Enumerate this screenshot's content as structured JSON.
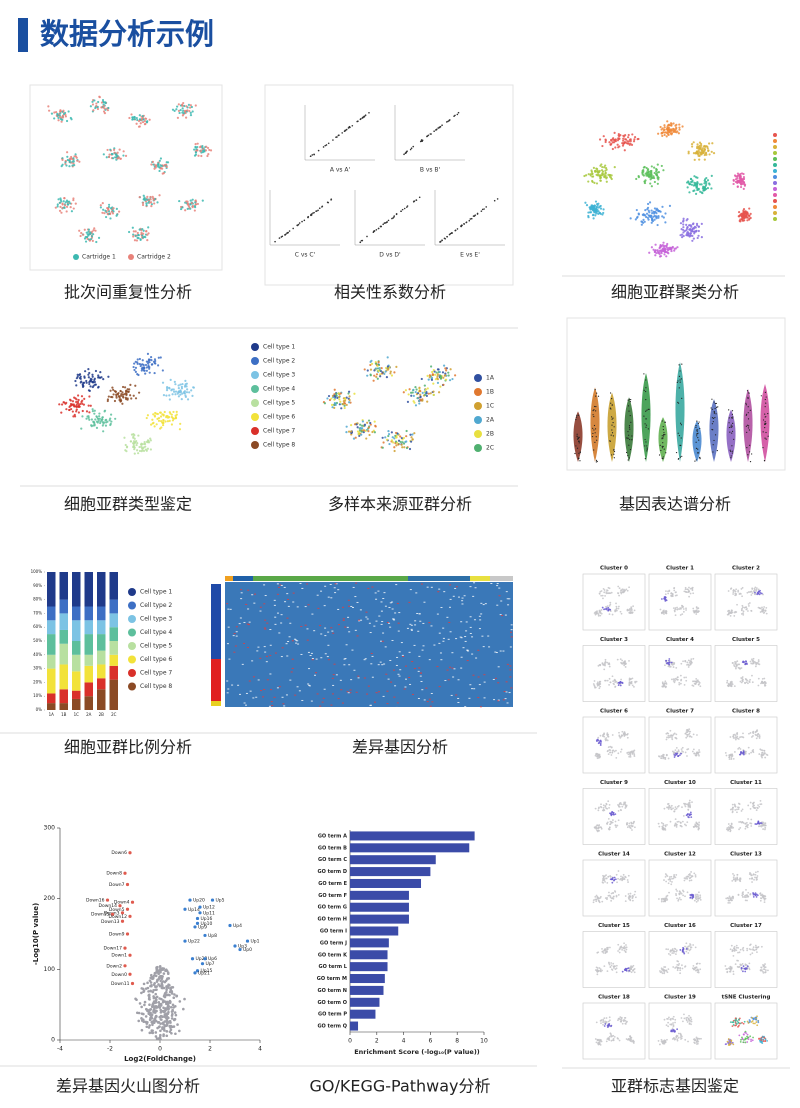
{
  "header": {
    "title": "数据分析示例"
  },
  "panels": [
    {
      "caption": "批次间重复性分析",
      "legend": [
        "Cartridge 1",
        "Cartridge 2"
      ]
    },
    {
      "caption": "相关性系数分析",
      "labels": [
        "A vs A'",
        "B vs B'",
        "C vs C'",
        "D vs D'",
        "E vs E'"
      ]
    },
    {
      "caption": "细胞亚群聚类分析"
    },
    {
      "caption": "细胞亚群类型鉴定",
      "legend": [
        "Cell type 1",
        "Cell type 2",
        "Cell type 3",
        "Cell type 4",
        "Cell type 5",
        "Cell type 6",
        "Cell type 7",
        "Cell type 8"
      ]
    },
    {
      "caption": "多样本来源亚群分析",
      "legend": [
        "1A",
        "1B",
        "1C",
        "2A",
        "2B",
        "2C"
      ]
    },
    {
      "caption": "基因表达谱分析"
    },
    {
      "caption": "细胞亚群比例分析",
      "chart": {
        "type": "stacked-bar",
        "categories": [
          "1A",
          "1B",
          "1C",
          "2A",
          "2B",
          "2C"
        ],
        "ylim": [
          0,
          100
        ],
        "yticks": [
          {
            "value": 0,
            "label": "0%"
          },
          {
            "value": 10,
            "label": "10%"
          },
          {
            "value": 20,
            "label": "20%"
          },
          {
            "value": 30,
            "label": "30%"
          },
          {
            "value": 40,
            "label": "40%"
          },
          {
            "value": 50,
            "label": "50%"
          },
          {
            "value": 60,
            "label": "60%"
          },
          {
            "value": 70,
            "label": "70%"
          },
          {
            "value": 80,
            "label": "80%"
          },
          {
            "value": 90,
            "label": "90%"
          },
          {
            "value": 100,
            "label": "100%"
          }
        ],
        "series": [
          {
            "name": "Cell type 1",
            "color": "#1f3a8a",
            "values": [
              25,
              20,
              25,
              25,
              25,
              20
            ]
          },
          {
            "name": "Cell type 2",
            "color": "#3d6fc4",
            "values": [
              10,
              10,
              10,
              10,
              10,
              10
            ]
          },
          {
            "name": "Cell type 3",
            "color": "#7cc3e4",
            "values": [
              10,
              12,
              15,
              10,
              10,
              10
            ]
          },
          {
            "name": "Cell type 4",
            "color": "#5dbf9c",
            "values": [
              15,
              10,
              10,
              15,
              12,
              10
            ]
          },
          {
            "name": "Cell type 5",
            "color": "#b8e0a0",
            "values": [
              10,
              15,
              12,
              8,
              10,
              10
            ]
          },
          {
            "name": "Cell type 6",
            "color": "#f2e23a",
            "values": [
              18,
              18,
              14,
              12,
              10,
              8
            ]
          },
          {
            "name": "Cell type 7",
            "color": "#d9302a",
            "values": [
              7,
              10,
              6,
              10,
              8,
              10
            ]
          },
          {
            "name": "Cell type 8",
            "color": "#8b4a25",
            "values": [
              5,
              5,
              8,
              10,
              15,
              22
            ]
          }
        ]
      }
    },
    {
      "caption": "差异基因分析"
    },
    {
      "caption": "差异基因火山图分析",
      "chart": {
        "type": "scatter",
        "xlabel": "Log2(FoldChange)",
        "ylabel": "-Log10(P value)",
        "xlim": [
          -4,
          4
        ],
        "xticks": [
          -4,
          -2,
          0,
          2,
          4
        ],
        "ylim": [
          0,
          300
        ],
        "yticks": [
          0,
          100,
          200,
          300
        ],
        "down_color": "#e05a4e",
        "up_color": "#3a7fd0",
        "points": [
          {
            "label": "Down6",
            "x": -1.2,
            "y": 265
          },
          {
            "label": "Down8",
            "x": -1.4,
            "y": 236
          },
          {
            "label": "Down7",
            "x": -1.3,
            "y": 220
          },
          {
            "label": "Down16",
            "x": -2.1,
            "y": 198
          },
          {
            "label": "Down4",
            "x": -1.1,
            "y": 195
          },
          {
            "label": "Down14",
            "x": -1.6,
            "y": 190
          },
          {
            "label": "Down5",
            "x": -1.3,
            "y": 185
          },
          {
            "label": "Down3",
            "x": -1.5,
            "y": 180
          },
          {
            "label": "Down15",
            "x": -1.9,
            "y": 178
          },
          {
            "label": "Down12",
            "x": -1.2,
            "y": 175
          },
          {
            "label": "Down13",
            "x": -1.5,
            "y": 168
          },
          {
            "label": "Down9",
            "x": -1.3,
            "y": 150
          },
          {
            "label": "Down17",
            "x": -1.4,
            "y": 130
          },
          {
            "label": "Down1",
            "x": -1.2,
            "y": 120
          },
          {
            "label": "Down2",
            "x": -1.4,
            "y": 105
          },
          {
            "label": "Down0",
            "x": -1.2,
            "y": 93
          },
          {
            "label": "Down11",
            "x": -1.1,
            "y": 80
          },
          {
            "label": "Up20",
            "x": 1.2,
            "y": 198
          },
          {
            "label": "Up5",
            "x": 2.1,
            "y": 198
          },
          {
            "label": "Up14",
            "x": 1.0,
            "y": 185
          },
          {
            "label": "Up12",
            "x": 1.6,
            "y": 188
          },
          {
            "label": "Up11",
            "x": 1.6,
            "y": 180
          },
          {
            "label": "Up16",
            "x": 1.5,
            "y": 172
          },
          {
            "label": "Up10",
            "x": 1.5,
            "y": 165
          },
          {
            "label": "Up9",
            "x": 1.4,
            "y": 160
          },
          {
            "label": "Up4",
            "x": 2.8,
            "y": 162
          },
          {
            "label": "Up8",
            "x": 1.8,
            "y": 148
          },
          {
            "label": "Up22",
            "x": 1.0,
            "y": 140
          },
          {
            "label": "Up1",
            "x": 3.5,
            "y": 140
          },
          {
            "label": "Up3",
            "x": 3.0,
            "y": 133
          },
          {
            "label": "Up0",
            "x": 3.2,
            "y": 128
          },
          {
            "label": "Up23",
            "x": 1.3,
            "y": 115
          },
          {
            "label": "Up6",
            "x": 1.8,
            "y": 115
          },
          {
            "label": "Up7",
            "x": 1.7,
            "y": 108
          },
          {
            "label": "Up15",
            "x": 1.5,
            "y": 98
          },
          {
            "label": "Up21",
            "x": 1.4,
            "y": 95
          }
        ]
      }
    },
    {
      "caption": "GO/KEGG-Pathway分析",
      "chart": {
        "type": "hbar",
        "color": "#3b4ba8",
        "xlabel": "Enrichment Score (-log₁₀(P value))",
        "categories": [
          "GO term A",
          "GO term B",
          "GO term C",
          "GO term D",
          "GO term E",
          "GO term F",
          "GO term G",
          "GO term H",
          "GO term I",
          "GO term J",
          "GO term K",
          "GO term L",
          "GO term M",
          "GO term N",
          "GO term O",
          "GO term P",
          "GO term Q"
        ],
        "values": [
          9.3,
          8.9,
          6.4,
          6.0,
          5.3,
          4.4,
          4.4,
          4.4,
          3.6,
          2.9,
          2.8,
          2.8,
          2.6,
          2.5,
          2.2,
          1.9,
          0.6
        ],
        "xlim": [
          0,
          10
        ],
        "xticks": [
          0,
          2,
          4,
          6,
          8,
          10
        ]
      }
    },
    {
      "caption": "亚群标志基因鉴定",
      "clusters": [
        "Cluster 0",
        "Cluster 1",
        "Cluster 2",
        "Cluster 3",
        "Cluster 4",
        "Cluster 5",
        "Cluster 6",
        "Cluster 7",
        "Cluster 8",
        "Cluster 9",
        "Cluster 10",
        "Cluster 11",
        "Cluster 14",
        "Cluster 12",
        "Cluster 13",
        "Cluster 15",
        "Cluster 16",
        "Cluster 17",
        "Cluster 18",
        "Cluster 19",
        "tSNE Clustering"
      ]
    }
  ]
}
